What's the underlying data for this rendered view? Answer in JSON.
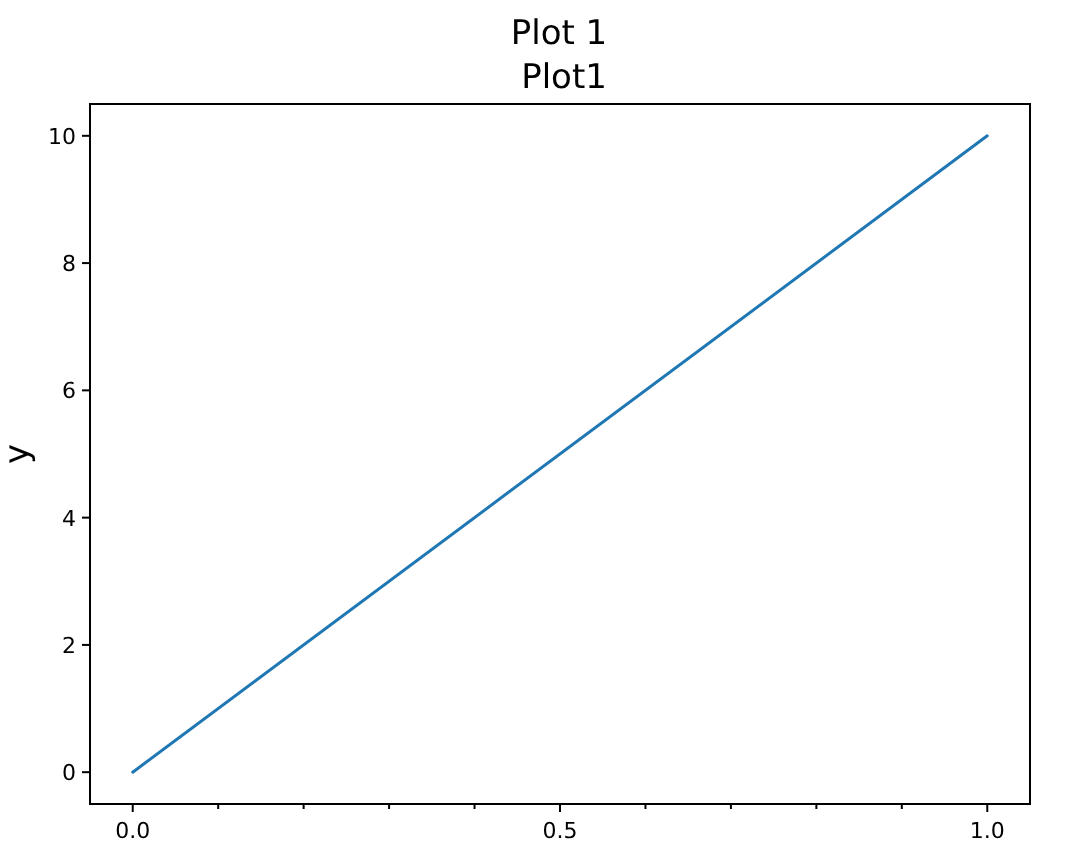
{
  "chart_data": {
    "type": "line",
    "title": "Plot 1",
    "subtitle": "Plot1",
    "ylabel": "y",
    "x": [
      0,
      1
    ],
    "series": [
      {
        "color": "#1f77b4",
        "values": [
          0,
          10
        ]
      }
    ],
    "xlim": [
      -0.05,
      1.05
    ],
    "ylim": [
      -0.5,
      10.5
    ],
    "xticks": [
      {
        "value": 0,
        "label": "0.0"
      },
      {
        "value": 0.1,
        "label": null
      },
      {
        "value": 0.2,
        "label": null
      },
      {
        "value": 0.3,
        "label": null
      },
      {
        "value": 0.4,
        "label": null
      },
      {
        "value": 0.5,
        "label": "0.5"
      },
      {
        "value": 0.6,
        "label": null
      },
      {
        "value": 0.7,
        "label": null
      },
      {
        "value": 0.8,
        "label": null
      },
      {
        "value": 0.9,
        "label": null
      },
      {
        "value": 1,
        "label": "1.0"
      }
    ],
    "yticks": [
      0,
      2,
      4,
      6,
      8,
      10
    ],
    "line_style": "solid",
    "marker": "none"
  }
}
